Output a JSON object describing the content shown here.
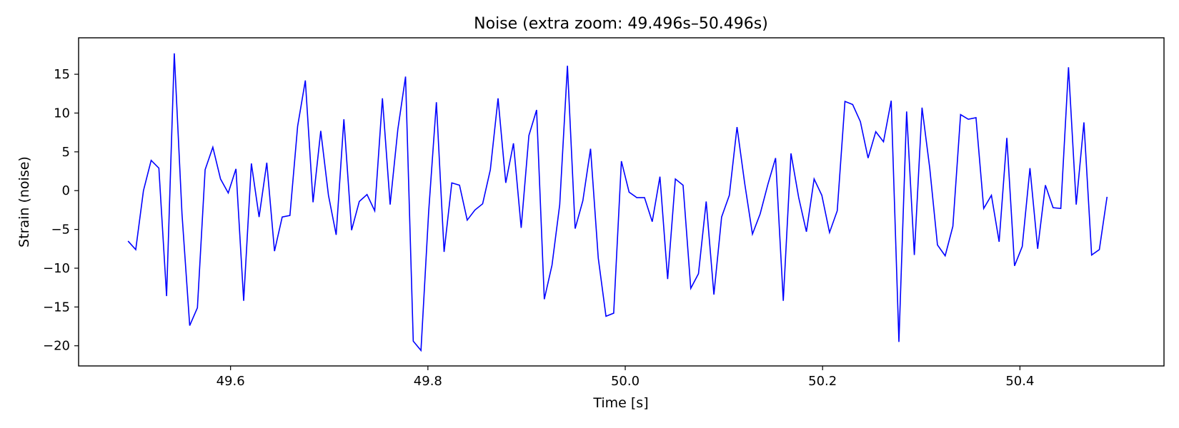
{
  "chart_data": {
    "type": "line",
    "title": "Noise (extra zoom: 49.496s–50.496s)",
    "xlabel": "Time [s]",
    "ylabel": "Strain (noise)",
    "xlim": [
      49.446,
      50.546
    ],
    "ylim": [
      -22.6,
      19.7
    ],
    "xticks": [
      {
        "value": 49.6,
        "label": "49.6"
      },
      {
        "value": 49.8,
        "label": "49.8"
      },
      {
        "value": 50.0,
        "label": "50.0"
      },
      {
        "value": 50.2,
        "label": "50.2"
      },
      {
        "value": 50.4,
        "label": "50.4"
      }
    ],
    "yticks": [
      {
        "value": 15,
        "label": "15"
      },
      {
        "value": 10,
        "label": "10"
      },
      {
        "value": 5,
        "label": "5"
      },
      {
        "value": 0,
        "label": "0"
      },
      {
        "value": -5,
        "label": "−5"
      },
      {
        "value": -10,
        "label": "−10"
      },
      {
        "value": -15,
        "label": "−15"
      },
      {
        "value": -20,
        "label": "−20"
      }
    ],
    "grid": false,
    "series": [
      {
        "color": "#0000ff",
        "x_start": 49.4961,
        "x_step": 0.0078125,
        "y": [
          -6.5,
          -7.6,
          0.0,
          3.9,
          2.9,
          -13.6,
          17.7,
          -3.0,
          -17.4,
          -15.1,
          2.7,
          5.6,
          1.5,
          -0.3,
          2.8,
          -14.2,
          3.5,
          -3.4,
          3.6,
          -7.8,
          -3.4,
          -3.2,
          8.3,
          14.2,
          -1.5,
          7.7,
          -0.6,
          -5.7,
          9.2,
          -5.1,
          -1.4,
          -0.5,
          -2.6,
          11.9,
          -1.8,
          7.9,
          14.7,
          -19.4,
          -20.6,
          -2.7,
          11.4,
          -7.9,
          1.0,
          0.7,
          -3.8,
          -2.5,
          -1.7,
          2.7,
          11.9,
          1.0,
          6.1,
          -4.8,
          7.1,
          10.4,
          -14.0,
          -9.6,
          -1.8,
          16.1,
          -4.9,
          -1.3,
          5.4,
          -8.7,
          -16.2,
          -15.8,
          3.8,
          -0.2,
          -0.9,
          -0.9,
          -4.0,
          1.8,
          -11.4,
          1.5,
          0.7,
          -12.6,
          -10.7,
          -1.4,
          -13.4,
          -3.4,
          -0.6,
          8.2,
          0.9,
          -5.6,
          -3.0,
          0.8,
          4.2,
          -14.2,
          4.8,
          -0.9,
          -5.3,
          1.5,
          -0.6,
          -5.4,
          -2.6,
          11.5,
          11.1,
          8.9,
          4.2,
          7.6,
          6.3,
          11.6,
          -19.5,
          10.2,
          -8.3,
          10.7,
          2.9,
          -7.0,
          -8.4,
          -4.6,
          9.8,
          9.2,
          9.4,
          -2.3,
          -0.6,
          -6.6,
          6.8,
          -9.7,
          -7.2,
          2.9,
          -7.5,
          0.7,
          -2.2,
          -2.3,
          15.9,
          -1.8,
          8.8,
          -8.3,
          -7.6,
          -0.8
        ]
      }
    ]
  }
}
